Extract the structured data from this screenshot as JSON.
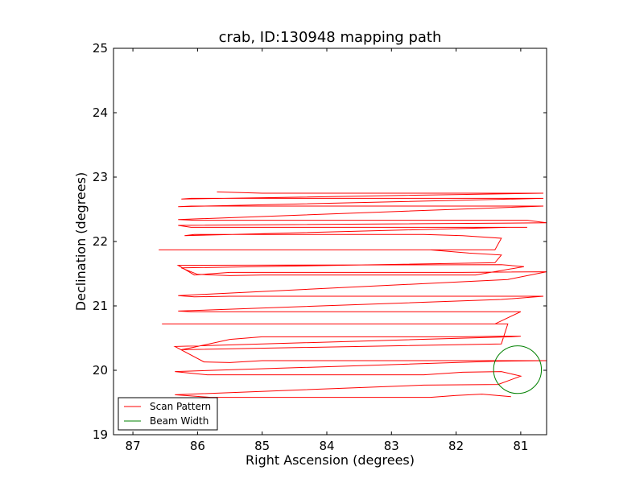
{
  "chart_data": {
    "type": "line",
    "title": "crab, ID:130948 mapping path",
    "xlabel": "Right Ascension (degrees)",
    "ylabel": "Declination (degrees)",
    "xlim": [
      87.3,
      80.6
    ],
    "ylim": [
      19,
      25
    ],
    "xticks": [
      87,
      86,
      85,
      84,
      83,
      82,
      81
    ],
    "yticks": [
      19,
      20,
      21,
      22,
      23,
      24,
      25
    ],
    "grid": false,
    "legend_position": "lower left",
    "series": [
      {
        "name": "Scan Pattern",
        "color": "#ff0000",
        "x": [
          81.15,
          81.6,
          82.0,
          82.4,
          83.0,
          84.0,
          85.0,
          85.5,
          85.8,
          86.35,
          82.5,
          81.35,
          81.0,
          81.3,
          81.9,
          82.5,
          83.0,
          84.0,
          85.0,
          85.5,
          85.85,
          86.35,
          81.4,
          80.6,
          81.2,
          82.0,
          82.5,
          83.0,
          84.0,
          85.0,
          85.5,
          85.9,
          86.35,
          81.15,
          81.0,
          81.3,
          81.9,
          82.5,
          83.0,
          84.0,
          85.0,
          85.5,
          86.05,
          86.25,
          81.3,
          81.2,
          81.9,
          82.5,
          83.0,
          84.0,
          85.0,
          85.5,
          86.1,
          86.55,
          81.4,
          81.0,
          81.5,
          82.0,
          82.5,
          83.0,
          84.0,
          85.0,
          85.5,
          86.1,
          86.3,
          81.3,
          80.65,
          81.5,
          82.0,
          82.5,
          83.0,
          84.0,
          85.0,
          85.5,
          86.05,
          86.3,
          81.2,
          80.6,
          81.9,
          82.5,
          83.0,
          84.0,
          85.0,
          85.5,
          86.05,
          86.3,
          81.3,
          80.95,
          81.7,
          82.3,
          82.5,
          83.0,
          84.0,
          85.0,
          85.5,
          86.0,
          86.25,
          81.4,
          81.3,
          81.8,
          82.4,
          83.0,
          84.0,
          85.0,
          85.5,
          86.0,
          86.6,
          81.4,
          81.3,
          81.9,
          82.5,
          83.0,
          84.0,
          85.0,
          85.5,
          86.05,
          86.2,
          81.2,
          80.9,
          81.7,
          82.3,
          83.0,
          84.0,
          85.0,
          85.5,
          86.1,
          86.3,
          80.6,
          80.9,
          81.7,
          82.3,
          83.0,
          84.0,
          85.0,
          85.5,
          86.05,
          86.3,
          80.65,
          80.9,
          81.7,
          82.3,
          83.0,
          84.0,
          85.0,
          85.5,
          86.1,
          86.3,
          80.65,
          81.0,
          81.7,
          82.3,
          83.0,
          84.0,
          85.0,
          85.5,
          86.1,
          86.25,
          80.65,
          81.05,
          81.8,
          82.3,
          83.0,
          84.0,
          85.0,
          85.7
        ],
        "y": [
          19.59,
          19.63,
          19.61,
          19.58,
          19.58,
          19.58,
          19.58,
          19.58,
          19.58,
          19.62,
          19.77,
          19.78,
          19.91,
          19.98,
          19.97,
          19.93,
          19.93,
          19.93,
          19.93,
          19.93,
          19.93,
          19.98,
          20.14,
          20.15,
          20.15,
          20.15,
          20.15,
          20.15,
          20.15,
          20.15,
          20.12,
          20.13,
          20.37,
          20.52,
          20.53,
          20.53,
          20.52,
          20.52,
          20.52,
          20.52,
          20.52,
          20.48,
          20.36,
          20.32,
          20.41,
          20.72,
          20.72,
          20.72,
          20.72,
          20.72,
          20.72,
          20.72,
          20.72,
          20.72,
          20.72,
          20.91,
          20.91,
          20.91,
          20.91,
          20.91,
          20.91,
          20.91,
          20.91,
          20.91,
          20.92,
          21.1,
          21.15,
          21.15,
          21.15,
          21.15,
          21.15,
          21.15,
          21.15,
          21.15,
          21.14,
          21.16,
          21.41,
          21.53,
          21.52,
          21.52,
          21.52,
          21.52,
          21.52,
          21.52,
          21.48,
          21.63,
          21.64,
          21.61,
          21.48,
          21.48,
          21.48,
          21.48,
          21.48,
          21.48,
          21.47,
          21.49,
          21.59,
          21.67,
          21.79,
          21.82,
          21.87,
          21.87,
          21.87,
          21.87,
          21.87,
          21.87,
          21.87,
          21.87,
          22.05,
          22.09,
          22.11,
          22.11,
          22.11,
          22.11,
          22.11,
          22.11,
          22.09,
          22.22,
          22.22,
          22.22,
          22.22,
          22.22,
          22.22,
          22.22,
          22.22,
          22.22,
          22.25,
          22.29,
          22.33,
          22.33,
          22.33,
          22.33,
          22.33,
          22.33,
          22.33,
          22.33,
          22.34,
          22.55,
          22.55,
          22.55,
          22.55,
          22.55,
          22.55,
          22.55,
          22.55,
          22.55,
          22.54,
          22.67,
          22.67,
          22.67,
          22.67,
          22.67,
          22.67,
          22.67,
          22.67,
          22.67,
          22.66,
          22.75,
          22.75,
          22.75,
          22.75,
          22.75,
          22.75,
          22.75,
          22.77
        ]
      },
      {
        "name": "Beam Width",
        "color": "#008000"
      }
    ],
    "beam": {
      "center_ra": 81.05,
      "center_dec": 20.01,
      "radius_deg": 0.37
    }
  }
}
